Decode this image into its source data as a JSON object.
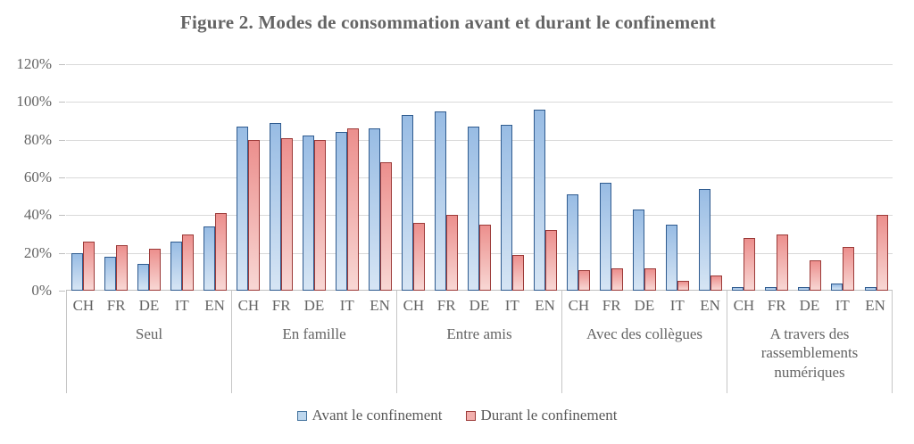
{
  "title": "Figure 2. Modes de consommation avant et durant le confinement",
  "y_axis": {
    "ticks": [
      "120%",
      "100%",
      "80%",
      "60%",
      "40%",
      "20%",
      "0%"
    ]
  },
  "colors": {
    "gridline": "#d9d9d9",
    "axis_line": "#bfbfbf",
    "text_gray": "#646464"
  },
  "chart_data": {
    "type": "bar",
    "title": "Figure 2. Modes de consommation avant et durant le confinement",
    "groups": [
      "Seul",
      "En famille",
      "Entre amis",
      "Avec des collègues",
      "A travers des rassemblements numériques"
    ],
    "subcategories": [
      "CH",
      "FR",
      "DE",
      "IT",
      "EN"
    ],
    "series": [
      {
        "name": "Avant le confinement",
        "fill_top": "#98bce4",
        "fill_bottom": "#d6e5f4",
        "border": "#2f5b8f",
        "legend_fill": "#bdd7ee",
        "legend_border": "#41719c",
        "values": [
          [
            20,
            18,
            14,
            26,
            34
          ],
          [
            87,
            89,
            82,
            84,
            86
          ],
          [
            93,
            95,
            87,
            88,
            96
          ],
          [
            51,
            57,
            43,
            35,
            54
          ],
          [
            2,
            2,
            2,
            4,
            2
          ]
        ]
      },
      {
        "name": "Durant le confinement",
        "fill_top": "#ec8f8d",
        "fill_bottom": "#f8d7d4",
        "border": "#9c3a38",
        "legend_fill": "#f2afad",
        "legend_border": "#9c3a38",
        "values": [
          [
            26,
            24,
            22,
            30,
            41
          ],
          [
            80,
            81,
            80,
            86,
            68
          ],
          [
            36,
            40,
            35,
            19,
            32
          ],
          [
            11,
            12,
            12,
            5,
            8
          ],
          [
            28,
            30,
            16,
            23,
            40
          ]
        ]
      }
    ],
    "ylim": [
      0,
      120
    ],
    "ytick_step": 20,
    "grid": true,
    "legend_position": "bottom"
  }
}
